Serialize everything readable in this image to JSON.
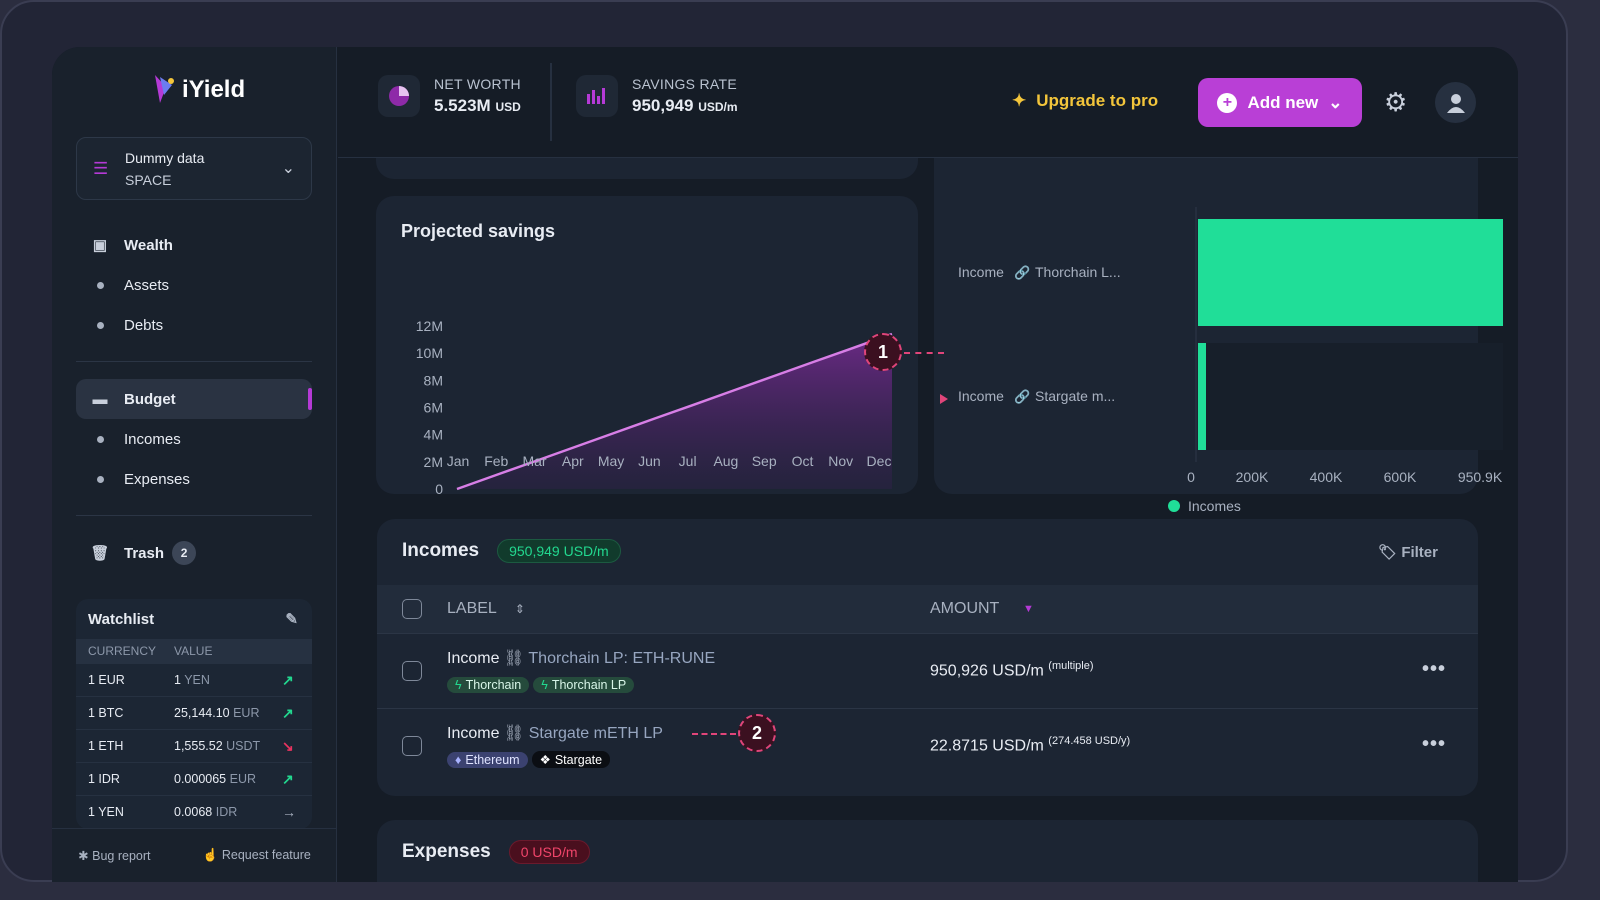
{
  "brand": {
    "name": "iYield"
  },
  "space": {
    "name": "Dummy data",
    "type": "SPACE"
  },
  "sidebar": {
    "items": [
      {
        "label": "Wealth",
        "icon": "wealth-icon"
      },
      {
        "label": "Assets"
      },
      {
        "label": "Debts"
      },
      {
        "label": "Budget",
        "icon": "wallet-icon",
        "active": true
      },
      {
        "label": "Incomes"
      },
      {
        "label": "Expenses"
      },
      {
        "label": "Trash",
        "icon": "trash-icon",
        "badge": "2"
      }
    ],
    "footer": {
      "bug": "Bug report",
      "request": "Request feature"
    }
  },
  "watchlist": {
    "title": "Watchlist",
    "columns": [
      "CURRENCY",
      "VALUE"
    ],
    "rows": [
      {
        "currency": "1 EUR",
        "value": "1",
        "unit": "YEN",
        "trend": "up"
      },
      {
        "currency": "1 BTC",
        "value": "25,144.10",
        "unit": "EUR",
        "trend": "up"
      },
      {
        "currency": "1 ETH",
        "value": "1,555.52",
        "unit": "USDT",
        "trend": "down"
      },
      {
        "currency": "1 IDR",
        "value": "0.000065",
        "unit": "EUR",
        "trend": "up"
      },
      {
        "currency": "1 YEN",
        "value": "0.0068",
        "unit": "IDR",
        "trend": "flat"
      }
    ],
    "colors": {
      "up": "#22d88f",
      "down": "#e8335f",
      "flat": "#a8b1c0"
    }
  },
  "header": {
    "net_worth": {
      "label": "NET WORTH",
      "value": "5.523M",
      "unit": "USD"
    },
    "savings_rate": {
      "label": "SAVINGS RATE",
      "value": "950,949",
      "unit": "USD/m"
    },
    "upgrade": "Upgrade to pro",
    "add_new": "Add new"
  },
  "chart_data": [
    {
      "type": "area",
      "title": "Projected savings",
      "categories": [
        "Jan",
        "Feb",
        "Mar",
        "Apr",
        "May",
        "Jun",
        "Jul",
        "Aug",
        "Sep",
        "Oct",
        "Nov",
        "Dec"
      ],
      "values": [
        0,
        1040000,
        2070000,
        3110000,
        4150000,
        5190000,
        6220000,
        7260000,
        8300000,
        9340000,
        10370000,
        11410000
      ],
      "yticks": [
        "0",
        "2M",
        "4M",
        "6M",
        "8M",
        "10M",
        "12M"
      ],
      "ylim": [
        0,
        12000000
      ],
      "color": "#d77ee6"
    },
    {
      "type": "bar",
      "orientation": "horizontal",
      "categories": [
        {
          "type": "Income",
          "name": "Thorchain L..."
        },
        {
          "type": "Income",
          "name": "Stargate m..."
        }
      ],
      "series": [
        {
          "name": "Incomes",
          "values": [
            950926,
            22.8715
          ],
          "color": "#20de98"
        }
      ],
      "xticks": [
        "0",
        "200K",
        "400K",
        "600K",
        "950.9K"
      ],
      "xlim": [
        0,
        950900
      ],
      "legend": "bottom"
    }
  ],
  "incomes": {
    "title": "Incomes",
    "total": "950,949 USD/m",
    "filter": "Filter",
    "columns": {
      "label": "LABEL",
      "amount": "AMOUNT"
    },
    "rows": [
      {
        "type": "Income",
        "name": "Thorchain LP: ETH-RUNE",
        "tags": [
          {
            "label": "Thorchain",
            "style": "green"
          },
          {
            "label": "Thorchain LP",
            "style": "green"
          }
        ],
        "amount": "950,926 USD/m",
        "note": "(multiple)"
      },
      {
        "type": "Income",
        "name": "Stargate mETH LP",
        "tags": [
          {
            "label": "Ethereum",
            "style": "purple"
          },
          {
            "label": "Stargate",
            "style": "black"
          }
        ],
        "amount": "22.8715 USD/m",
        "note": "(274.458 USD/y)"
      }
    ]
  },
  "expenses": {
    "title": "Expenses",
    "total": "0 USD/m"
  },
  "annotations": {
    "one": "1",
    "two": "2"
  }
}
